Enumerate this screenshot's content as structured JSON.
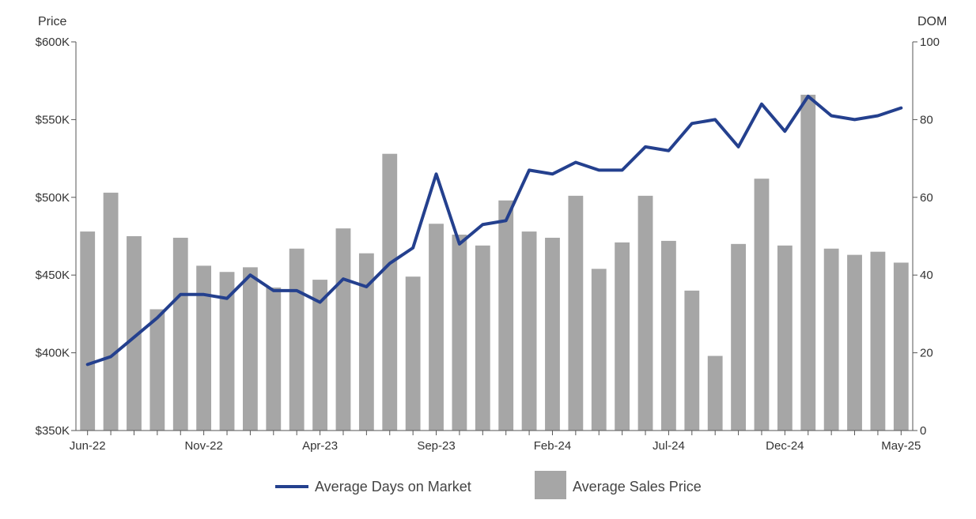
{
  "chart_data": {
    "type": "bar",
    "combo": true,
    "left_axis": {
      "title": "Price",
      "ylim": [
        350000,
        600000
      ],
      "tick_values": [
        350000,
        400000,
        450000,
        500000,
        550000,
        600000
      ],
      "tick_labels": [
        "$350K",
        "$400K",
        "$450K",
        "$500K",
        "$550K",
        "$600K"
      ]
    },
    "right_axis": {
      "title": "DOM",
      "ylim": [
        0,
        100
      ],
      "tick_values": [
        0,
        20,
        40,
        60,
        80,
        100
      ],
      "tick_labels": [
        "0",
        "20",
        "40",
        "60",
        "80",
        "100"
      ]
    },
    "categories": [
      "Jun-22",
      "Jul-22",
      "Aug-22",
      "Sep-22",
      "Oct-22",
      "Nov-22",
      "Dec-22",
      "Jan-23",
      "Feb-23",
      "Mar-23",
      "Apr-23",
      "May-23",
      "Jun-23",
      "Jul-23",
      "Aug-23",
      "Sep-23",
      "Oct-23",
      "Nov-23",
      "Dec-23",
      "Jan-24",
      "Feb-24",
      "Mar-24",
      "Apr-24",
      "May-24",
      "Jun-24",
      "Jul-24",
      "Aug-24",
      "Sep-24",
      "Oct-24",
      "Nov-24",
      "Dec-24",
      "Jan-25",
      "Feb-25",
      "Mar-25",
      "Apr-25",
      "May-25"
    ],
    "x_tick_labels": [
      "Jun-22",
      "Nov-22",
      "Apr-23",
      "Sep-23",
      "Feb-24",
      "Jul-24",
      "Dec-24",
      "May-25"
    ],
    "series": [
      {
        "name": "Average Sales Price",
        "kind": "bar",
        "axis": "left",
        "color": "#a6a6a6",
        "values": [
          478000,
          503000,
          475000,
          428000,
          474000,
          456000,
          452000,
          455000,
          442000,
          467000,
          447000,
          480000,
          464000,
          528000,
          449000,
          483000,
          476000,
          469000,
          498000,
          478000,
          474000,
          501000,
          454000,
          471000,
          501000,
          472000,
          440000,
          398000,
          470000,
          512000,
          469000,
          566000,
          467000,
          463000,
          465000,
          458000
        ]
      },
      {
        "name": "Average Days on Market",
        "kind": "line",
        "axis": "right",
        "color": "#24408e",
        "values": [
          17,
          19,
          24,
          29,
          35,
          35,
          34,
          40,
          36,
          36,
          33,
          39,
          37,
          43,
          47,
          66,
          48,
          53,
          54,
          67,
          66,
          69,
          67,
          67,
          73,
          72,
          79,
          80,
          73,
          84,
          77,
          86,
          81,
          80,
          81,
          83
        ]
      }
    ],
    "legend": {
      "position": "bottom-center",
      "order": [
        "Average Days on Market",
        "Average Sales Price"
      ]
    },
    "grid": false
  }
}
